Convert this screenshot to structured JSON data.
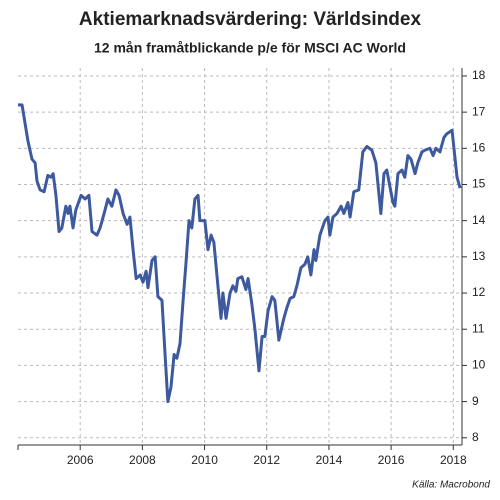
{
  "chart_data": {
    "type": "line",
    "title": "Aktiemarknadsvärdering: Världsindex",
    "subtitle": "12 mån framåtblickande p/e för MSCI AC World",
    "source": "Källa: Macrobond",
    "x": [
      2004.0,
      2004.13,
      2004.32,
      2004.45,
      2004.55,
      2004.61,
      2004.71,
      2004.84,
      2004.96,
      2005.06,
      2005.13,
      2005.22,
      2005.32,
      2005.41,
      2005.54,
      2005.61,
      2005.67,
      2005.77,
      2005.86,
      2006.03,
      2006.16,
      2006.28,
      2006.38,
      2006.54,
      2006.64,
      2006.77,
      2006.89,
      2007.02,
      2007.15,
      2007.25,
      2007.38,
      2007.51,
      2007.6,
      2007.7,
      2007.8,
      2007.93,
      2008.02,
      2008.12,
      2008.18,
      2008.31,
      2008.41,
      2008.5,
      2008.63,
      2008.73,
      2008.82,
      2008.92,
      2009.02,
      2009.11,
      2009.21,
      2009.31,
      2009.4,
      2009.5,
      2009.59,
      2009.69,
      2009.79,
      2009.85,
      2010.01,
      2010.11,
      2010.21,
      2010.3,
      2010.43,
      2010.53,
      2010.59,
      2010.69,
      2010.82,
      2010.91,
      2011.01,
      2011.07,
      2011.2,
      2011.33,
      2011.4,
      2011.52,
      2011.62,
      2011.75,
      2011.85,
      2011.94,
      2012.04,
      2012.17,
      2012.26,
      2012.39,
      2012.55,
      2012.65,
      2012.75,
      2012.87,
      2012.97,
      2013.1,
      2013.23,
      2013.32,
      2013.42,
      2013.52,
      2013.58,
      2013.71,
      2013.87,
      2013.97,
      2014.03,
      2014.13,
      2014.26,
      2014.39,
      2014.48,
      2014.61,
      2014.68,
      2014.8,
      2014.96,
      2015.09,
      2015.22,
      2015.38,
      2015.51,
      2015.67,
      2015.77,
      2015.86,
      2016.06,
      2016.12,
      2016.22,
      2016.35,
      2016.44,
      2016.54,
      2016.64,
      2016.77,
      2016.86,
      2016.99,
      2017.09,
      2017.25,
      2017.35,
      2017.44,
      2017.57,
      2017.7,
      2017.79,
      2017.96,
      2018.12,
      2018.22
    ],
    "series": [
      {
        "name": "p/e",
        "color": "#3d5a9e",
        "values": [
          17.2,
          17.2,
          16.2,
          15.7,
          15.6,
          15.1,
          14.85,
          14.8,
          15.25,
          15.2,
          15.3,
          14.7,
          13.7,
          13.8,
          14.4,
          14.2,
          14.4,
          13.8,
          14.3,
          14.7,
          14.6,
          14.7,
          13.7,
          13.6,
          13.8,
          14.2,
          14.6,
          14.4,
          14.85,
          14.7,
          14.2,
          13.9,
          14.1,
          13.2,
          12.4,
          12.5,
          12.3,
          12.6,
          12.15,
          12.9,
          13.0,
          11.9,
          11.8,
          10.3,
          9.0,
          9.4,
          10.3,
          10.2,
          10.6,
          11.8,
          12.8,
          14.0,
          13.8,
          14.6,
          14.7,
          14.0,
          14.0,
          13.2,
          13.6,
          13.4,
          12.2,
          11.3,
          12.0,
          11.3,
          12.0,
          12.2,
          12.05,
          12.4,
          12.45,
          12.1,
          12.4,
          11.7,
          11.0,
          9.85,
          10.8,
          10.8,
          11.5,
          11.9,
          11.8,
          10.7,
          11.3,
          11.6,
          11.85,
          11.9,
          12.2,
          12.7,
          12.8,
          13.0,
          12.5,
          13.2,
          12.9,
          13.6,
          14.0,
          14.1,
          13.6,
          14.1,
          14.2,
          14.4,
          14.2,
          14.5,
          14.1,
          14.8,
          14.85,
          15.9,
          16.05,
          15.95,
          15.6,
          14.2,
          15.3,
          15.4,
          14.5,
          14.4,
          15.3,
          15.4,
          15.2,
          15.8,
          15.7,
          15.3,
          15.6,
          15.9,
          15.95,
          16.0,
          15.8,
          16.0,
          15.9,
          16.3,
          16.4,
          16.5,
          15.2,
          14.9
        ]
      }
    ],
    "xlim": [
      2004,
      2018.28
    ],
    "xticks": [
      2006,
      2008,
      2010,
      2012,
      2014,
      2016,
      2018
    ],
    "ylim": [
      7.8,
      18.22
    ],
    "yticks": [
      8,
      9,
      10,
      11,
      12,
      13,
      14,
      15,
      16,
      17,
      18
    ],
    "grid": true
  }
}
